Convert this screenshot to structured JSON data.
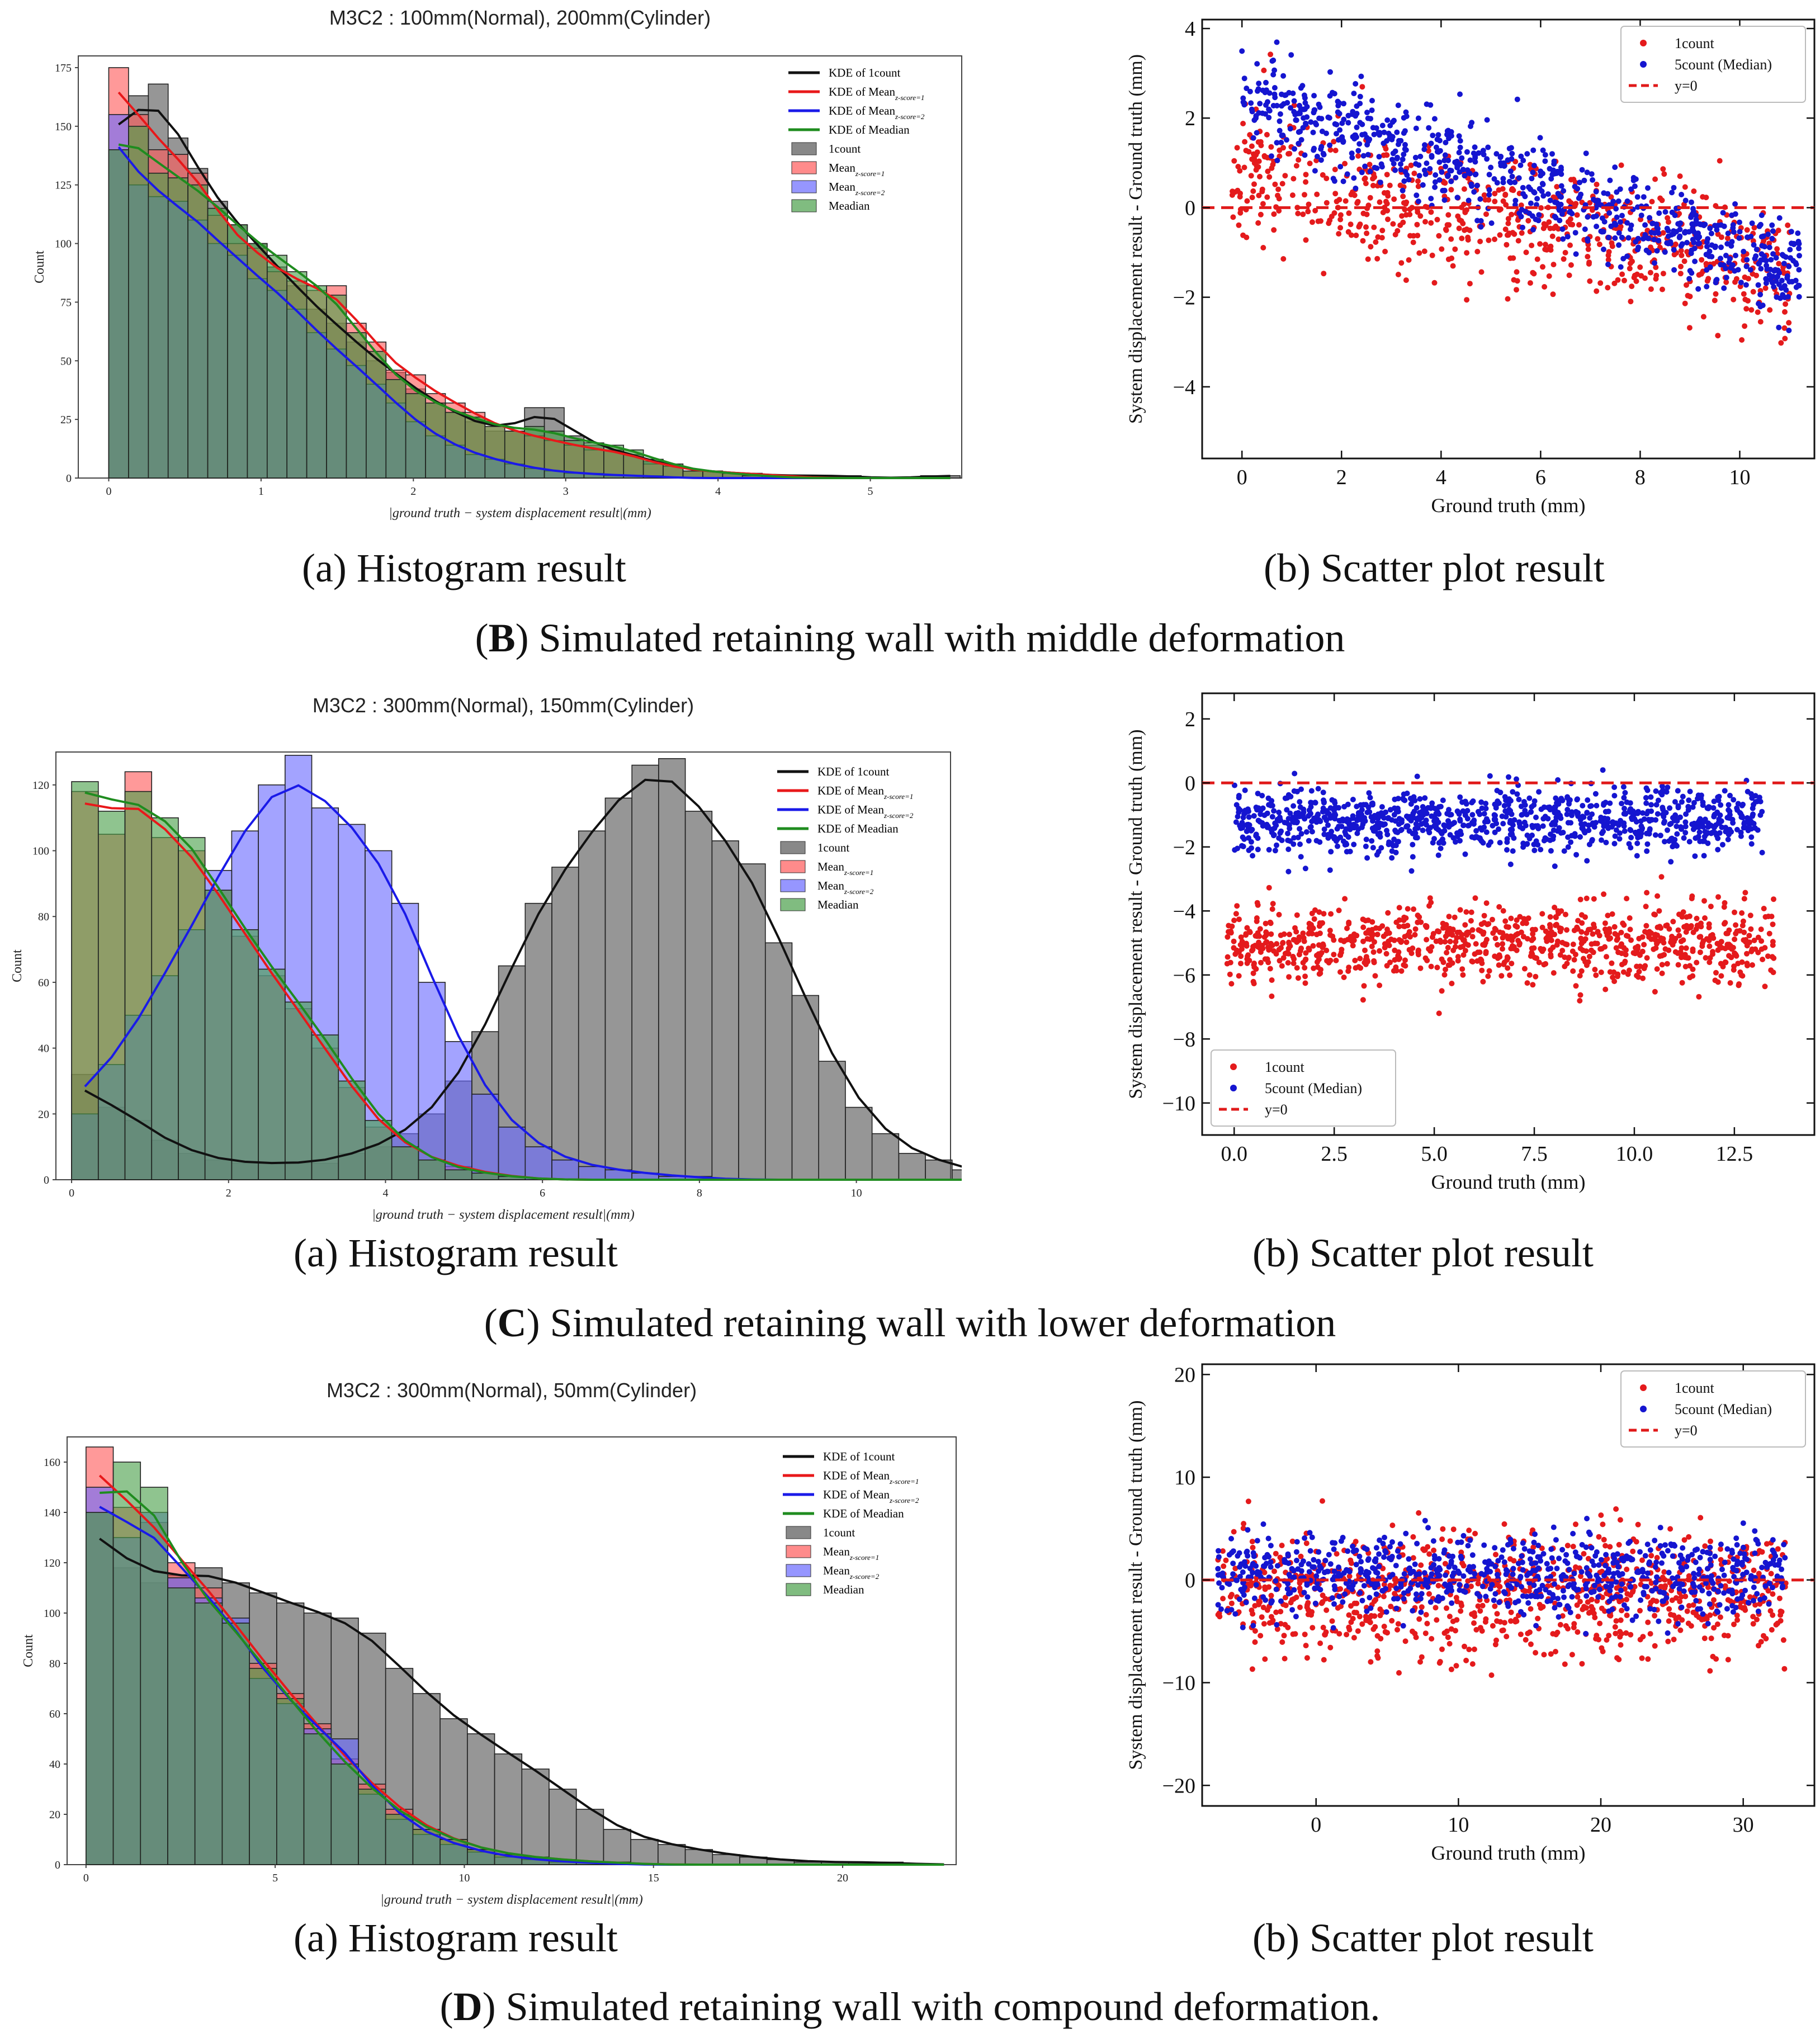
{
  "captions": {
    "histogram": "(a) Histogram result",
    "scatter": "(b) Scatter plot result",
    "sections": [
      {
        "letter": "B",
        "text": " Simulated retaining wall with middle deformation"
      },
      {
        "letter": "C",
        "text": " Simulated retaining wall with lower deformation"
      },
      {
        "letter": "D",
        "text": " Simulated retaining wall with compound deformation."
      }
    ]
  },
  "colors": {
    "c1count": "#111111",
    "mean1": "#e8181a",
    "mean2": "#1a1ae8",
    "median": "#1f8c1f",
    "hist_gray": "#555555",
    "hist_red": "#ff5a5a",
    "hist_blue": "#6a6aff",
    "hist_green": "#4aa04a",
    "scatter_red": "#e41a1c",
    "scatter_blue": "#1515d0",
    "refline": "#e01a1a"
  },
  "hist_legend": [
    "KDE of 1count",
    "KDE of Mean_{z-score=1}",
    "KDE of Mean_{z-score=2}",
    "KDE of Meadian",
    "1count",
    "Mean_{z-score=1}",
    "Mean_{z-score=2}",
    "Meadian"
  ],
  "scatter_legend": [
    "1count",
    "5count (Median)",
    "y=0"
  ],
  "chart_data": [
    {
      "type": "bar",
      "panel": "B-a",
      "title": "M3C2 : 100mm(Normal), 200mm(Cylinder)",
      "xlabel": "|ground truth − system displacement result|(mm)",
      "ylabel": "Count",
      "xlim": [
        -0.2,
        5.6
      ],
      "ylim": [
        0,
        180
      ],
      "xticks": [
        0,
        1,
        2,
        3,
        4,
        5
      ],
      "yticks": [
        0,
        25,
        50,
        75,
        100,
        125,
        150,
        175
      ],
      "bin_width": 0.13,
      "bin_start": 0.0,
      "series": [
        {
          "name": "1count",
          "values": [
            140,
            163,
            168,
            145,
            132,
            118,
            108,
            100,
            90,
            82,
            72,
            66,
            58,
            50,
            45,
            38,
            32,
            28,
            24,
            20,
            20,
            30,
            30,
            18,
            14,
            12,
            10,
            7,
            5,
            3,
            3,
            2,
            2,
            1,
            1,
            1,
            1,
            1,
            0,
            0,
            0,
            1,
            1
          ]
        },
        {
          "name": "Mean_{z-score=1}",
          "values": [
            175,
            155,
            140,
            138,
            130,
            112,
            100,
            98,
            88,
            84,
            80,
            82,
            66,
            58,
            46,
            44,
            36,
            32,
            28,
            22,
            20,
            18,
            16,
            14,
            12,
            12,
            10,
            6,
            5,
            3,
            3,
            2,
            2,
            1,
            1,
            0,
            0,
            0,
            0,
            0,
            0,
            0,
            0
          ]
        },
        {
          "name": "Mean_{z-score=2}",
          "values": [
            155,
            125,
            120,
            118,
            110,
            100,
            95,
            85,
            80,
            72,
            62,
            55,
            48,
            40,
            32,
            24,
            18,
            14,
            10,
            8,
            6,
            4,
            3,
            2,
            2,
            1,
            1,
            1,
            0,
            0,
            0,
            0,
            0,
            0,
            0,
            0,
            0,
            0,
            0,
            0,
            0,
            0,
            0
          ]
        },
        {
          "name": "Meadian",
          "values": [
            140,
            150,
            130,
            128,
            125,
            115,
            108,
            100,
            95,
            88,
            82,
            78,
            62,
            54,
            42,
            36,
            32,
            28,
            26,
            22,
            20,
            22,
            20,
            16,
            15,
            14,
            12,
            8,
            6,
            3,
            3,
            2,
            1,
            1,
            0,
            0,
            0,
            0,
            0,
            0,
            0,
            0,
            0
          ]
        }
      ]
    },
    {
      "type": "scatter",
      "panel": "B-b",
      "xlabel": "Ground truth (mm)",
      "ylabel": "System displacement result - Ground truth (mm)",
      "xlim": [
        -0.8,
        11.5
      ],
      "ylim": [
        -5.6,
        4.2
      ],
      "xticks": [
        0,
        2,
        4,
        6,
        8,
        10
      ],
      "yticks": [
        -4,
        -2,
        0,
        2,
        4
      ],
      "legend_position": "top-right",
      "reference_line_y": 0,
      "series": [
        {
          "name": "1count",
          "model": {
            "x_range": [
              -0.2,
              11.0
            ],
            "y_at_x0": 0.8,
            "slope": -0.2,
            "spread": 1.4,
            "n": 700
          }
        },
        {
          "name": "5count (Median)",
          "model": {
            "x_range": [
              0.0,
              11.2
            ],
            "y_at_x0": 2.5,
            "slope": -0.35,
            "spread": 0.9,
            "n": 800
          }
        }
      ]
    },
    {
      "type": "bar",
      "panel": "C-a",
      "title": "M3C2 : 300mm(Normal), 150mm(Cylinder)",
      "xlabel": "|ground truth − system displacement result|(mm)",
      "ylabel": "Count",
      "xlim": [
        -0.2,
        11.2
      ],
      "ylim": [
        0,
        130
      ],
      "xticks": [
        0,
        2,
        4,
        6,
        8,
        10
      ],
      "yticks": [
        0,
        20,
        40,
        60,
        80,
        100,
        120
      ],
      "bin_width": 0.34,
      "bin_start": 0.0,
      "series": [
        {
          "name": "1count",
          "values": [
            32,
            22,
            18,
            12,
            8,
            6,
            5,
            5,
            5,
            5,
            8,
            10,
            14,
            20,
            30,
            45,
            65,
            84,
            95,
            106,
            116,
            126,
            128,
            112,
            103,
            96,
            72,
            56,
            36,
            22,
            14,
            8,
            6,
            3,
            2,
            1,
            1,
            0,
            0,
            0,
            0,
            0,
            0
          ]
        },
        {
          "name": "Mean_{z-score=1}",
          "values": [
            118,
            105,
            124,
            104,
            100,
            88,
            74,
            62,
            52,
            40,
            28,
            16,
            10,
            6,
            4,
            2,
            1,
            0,
            0,
            0,
            0,
            0,
            0,
            0,
            0,
            0,
            0,
            0,
            0,
            0,
            0,
            0,
            0,
            0,
            0,
            0,
            0,
            0,
            0,
            0,
            0,
            0,
            0
          ]
        },
        {
          "name": "Mean_{z-score=2}",
          "values": [
            20,
            35,
            50,
            62,
            76,
            94,
            106,
            120,
            129,
            113,
            108,
            100,
            84,
            60,
            42,
            26,
            16,
            10,
            6,
            4,
            3,
            2,
            1,
            1,
            0,
            0,
            0,
            0,
            0,
            0,
            0,
            0,
            0,
            0,
            0,
            0,
            0,
            0,
            0,
            0,
            0,
            0,
            0
          ]
        },
        {
          "name": "Meadian",
          "values": [
            121,
            112,
            118,
            110,
            104,
            88,
            76,
            64,
            54,
            44,
            30,
            18,
            10,
            6,
            3,
            2,
            1,
            0,
            0,
            0,
            0,
            0,
            0,
            0,
            0,
            0,
            0,
            0,
            0,
            0,
            0,
            0,
            0,
            0,
            0,
            0,
            0,
            0,
            0,
            0,
            0,
            0,
            0
          ]
        }
      ]
    },
    {
      "type": "scatter",
      "panel": "C-b",
      "xlabel": "Ground truth (mm)",
      "ylabel": "System displacement result - Ground truth (mm)",
      "xlim": [
        -0.8,
        14.5
      ],
      "ylim": [
        -11,
        2.8
      ],
      "xticks": [
        0.0,
        2.5,
        5.0,
        7.5,
        10.0,
        12.5
      ],
      "yticks": [
        -10,
        -8,
        -6,
        -4,
        -2,
        0,
        2
      ],
      "legend_position": "bottom-left",
      "reference_line_y": 0,
      "series": [
        {
          "name": "1count",
          "model": {
            "x_range": [
              -0.2,
              13.5
            ],
            "center_y": -5.0,
            "spread": 1.1,
            "n": 900
          }
        },
        {
          "name": "5count (Median)",
          "model": {
            "x_range": [
              0.0,
              13.2
            ],
            "center_y": -1.2,
            "spread": 0.9,
            "n": 1000
          }
        }
      ]
    },
    {
      "type": "bar",
      "panel": "D-a",
      "title": "M3C2 : 300mm(Normal), 50mm(Cylinder)",
      "xlabel": "|ground truth − system displacement result|(mm)",
      "ylabel": "Count",
      "xlim": [
        -0.5,
        23
      ],
      "ylim": [
        0,
        170
      ],
      "xticks": [
        0,
        5,
        10,
        15,
        20
      ],
      "yticks": [
        0,
        20,
        40,
        60,
        80,
        100,
        120,
        140,
        160
      ],
      "bin_width": 0.72,
      "bin_start": 0.0,
      "series": [
        {
          "name": "1count",
          "values": [
            140,
            118,
            112,
            115,
            118,
            112,
            108,
            104,
            100,
            98,
            92,
            78,
            68,
            58,
            52,
            44,
            38,
            30,
            22,
            14,
            10,
            8,
            6,
            4,
            3,
            2,
            1,
            1,
            1,
            1,
            0,
            0
          ]
        },
        {
          "name": "Mean_{z-score=1}",
          "values": [
            166,
            142,
            136,
            120,
            110,
            96,
            80,
            68,
            56,
            42,
            32,
            22,
            14,
            10,
            6,
            4,
            3,
            2,
            1,
            1,
            0,
            0,
            0,
            0,
            0,
            0,
            0,
            0,
            0,
            0,
            0,
            0
          ]
        },
        {
          "name": "Mean_{z-score=2}",
          "values": [
            150,
            130,
            140,
            114,
            106,
            98,
            74,
            64,
            54,
            50,
            28,
            18,
            12,
            8,
            5,
            3,
            2,
            1,
            1,
            0,
            0,
            0,
            0,
            0,
            0,
            0,
            0,
            0,
            0,
            0,
            0,
            0
          ]
        },
        {
          "name": "Meadian",
          "values": [
            140,
            160,
            150,
            110,
            104,
            96,
            78,
            66,
            52,
            40,
            30,
            20,
            14,
            10,
            6,
            4,
            3,
            2,
            1,
            1,
            0,
            0,
            0,
            0,
            0,
            0,
            0,
            0,
            0,
            0,
            0,
            0
          ]
        }
      ]
    },
    {
      "type": "scatter",
      "panel": "D-b",
      "xlabel": "Ground truth (mm)",
      "ylabel": "System displacement result - Ground truth (mm)",
      "xlim": [
        -8,
        35
      ],
      "ylim": [
        -22,
        21
      ],
      "xticks": [
        0,
        10,
        20,
        30
      ],
      "yticks": [
        -20,
        -10,
        0,
        10,
        20
      ],
      "legend_position": "top-right",
      "reference_line_y": 0,
      "series": [
        {
          "name": "1count",
          "model": {
            "x_range": [
              -7,
              33
            ],
            "center_y": -1.5,
            "spread": 5.5,
            "n": 900
          }
        },
        {
          "name": "5count (Median)",
          "model": {
            "x_range": [
              -7,
              33
            ],
            "center_y": 0.5,
            "spread": 3.5,
            "n": 800
          }
        }
      ]
    }
  ]
}
